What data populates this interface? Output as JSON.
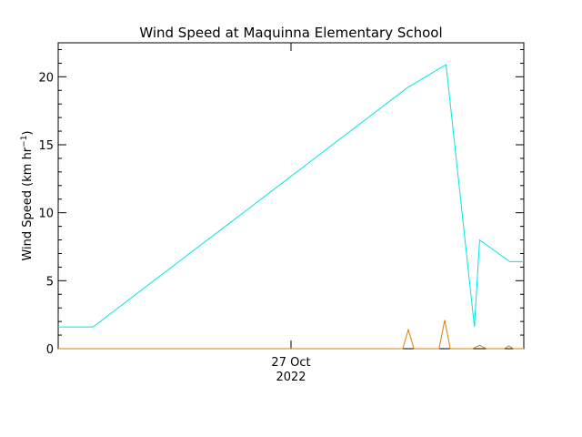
{
  "chart_data": {
    "type": "line",
    "title": "Wind Speed at Maquinna Elementary School",
    "ylabel_main": "Wind Speed (km hr",
    "ylabel_exp": "−1",
    "ylabel_close": ")",
    "x_tick_label_line1": "27 Oct",
    "x_tick_label_line2": "2022",
    "xlim": [
      0,
      1
    ],
    "ylim": [
      0,
      22.5
    ],
    "yticks": [
      0,
      5,
      10,
      15,
      20
    ],
    "ytick_labels": [
      "0",
      "5",
      "10",
      "15",
      "20"
    ],
    "grid": false,
    "series": [
      {
        "color": "#00e5e5",
        "x": [
          0.0,
          0.075,
          0.75,
          0.833,
          0.894,
          0.905,
          0.97,
          1.0
        ],
        "y": [
          1.6,
          1.6,
          19.2,
          20.9,
          1.6,
          8.0,
          6.4,
          6.4
        ]
      },
      {
        "color": "#d98000",
        "x": [
          0.0,
          0.74,
          0.752,
          0.764,
          0.818,
          0.83,
          0.842,
          0.89,
          0.905,
          0.92,
          0.958,
          0.968,
          0.978,
          1.0
        ],
        "y": [
          0,
          0,
          1.4,
          0,
          0,
          2.1,
          0,
          0,
          0.25,
          0,
          0,
          0.2,
          0,
          0
        ]
      }
    ]
  }
}
